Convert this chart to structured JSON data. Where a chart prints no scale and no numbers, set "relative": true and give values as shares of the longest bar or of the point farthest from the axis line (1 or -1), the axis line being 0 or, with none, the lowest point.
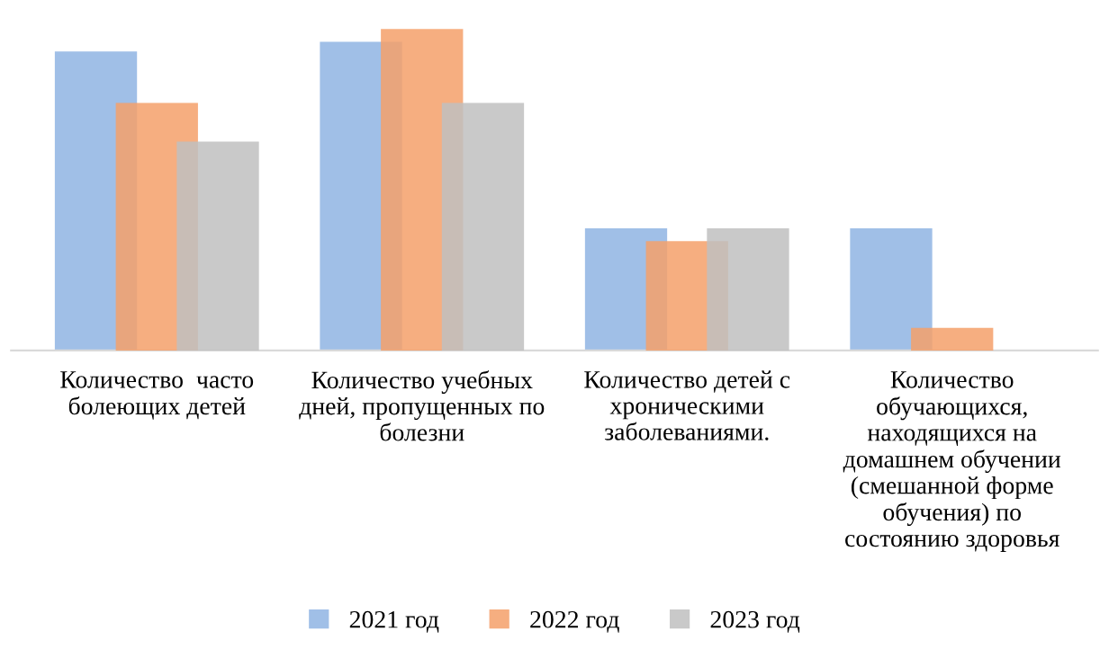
{
  "chart_data": {
    "type": "bar",
    "relative": true,
    "legend": "bottom",
    "categories": [
      "Количество  часто\nболеющих детей",
      "Количество учебных\nдней, пропущенных по\nболезни",
      "Количество детей с\nхроническими\nзаболеваниями.",
      "Количество\nобучающихся,\nнаходящихся на\nдомашнем обучении\n(смешанной форме\nобучения) по\nсостоянию здоровья"
    ],
    "series": [
      {
        "name": "2021 год",
        "color": "#8fb4e3",
        "values": [
          0.93,
          0.96,
          0.38,
          0.38
        ]
      },
      {
        "name": "2022 год",
        "color": "#f4a06a",
        "values": [
          0.77,
          1,
          0.34,
          0.07
        ]
      },
      {
        "name": "2023 год",
        "color": "#bfbfbf",
        "values": [
          0.65,
          0.77,
          0.38,
          null
        ]
      }
    ]
  }
}
